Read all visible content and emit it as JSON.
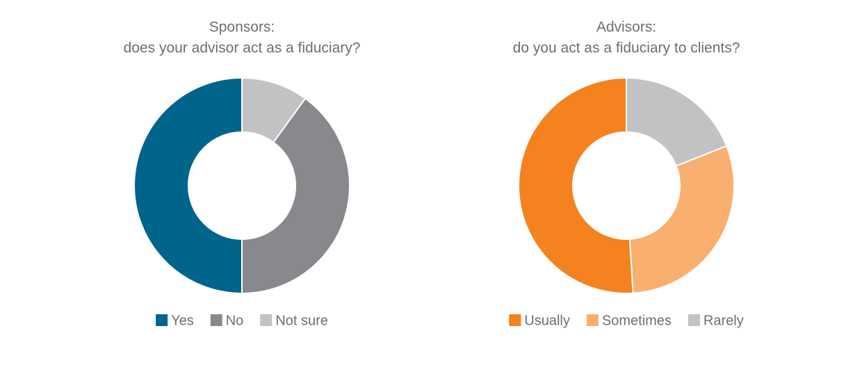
{
  "chart_data": [
    {
      "type": "pie",
      "title": "Sponsors:",
      "subtitle": "does your advisor act as a fiduciary?",
      "categories": [
        "Yes",
        "No",
        "Not sure"
      ],
      "values": [
        50,
        40,
        10
      ],
      "colors": [
        "#00648b",
        "#88898c",
        "#c1c2c4"
      ],
      "donut": true
    },
    {
      "type": "pie",
      "title": "Advisors:",
      "subtitle": "do you act as a fiduciary to clients?",
      "categories": [
        "Usually",
        "Sometimes",
        "Rarely"
      ],
      "values": [
        51,
        30,
        19
      ],
      "colors": [
        "#f4821f",
        "#f9af70",
        "#c1c2c4"
      ],
      "donut": true
    }
  ]
}
